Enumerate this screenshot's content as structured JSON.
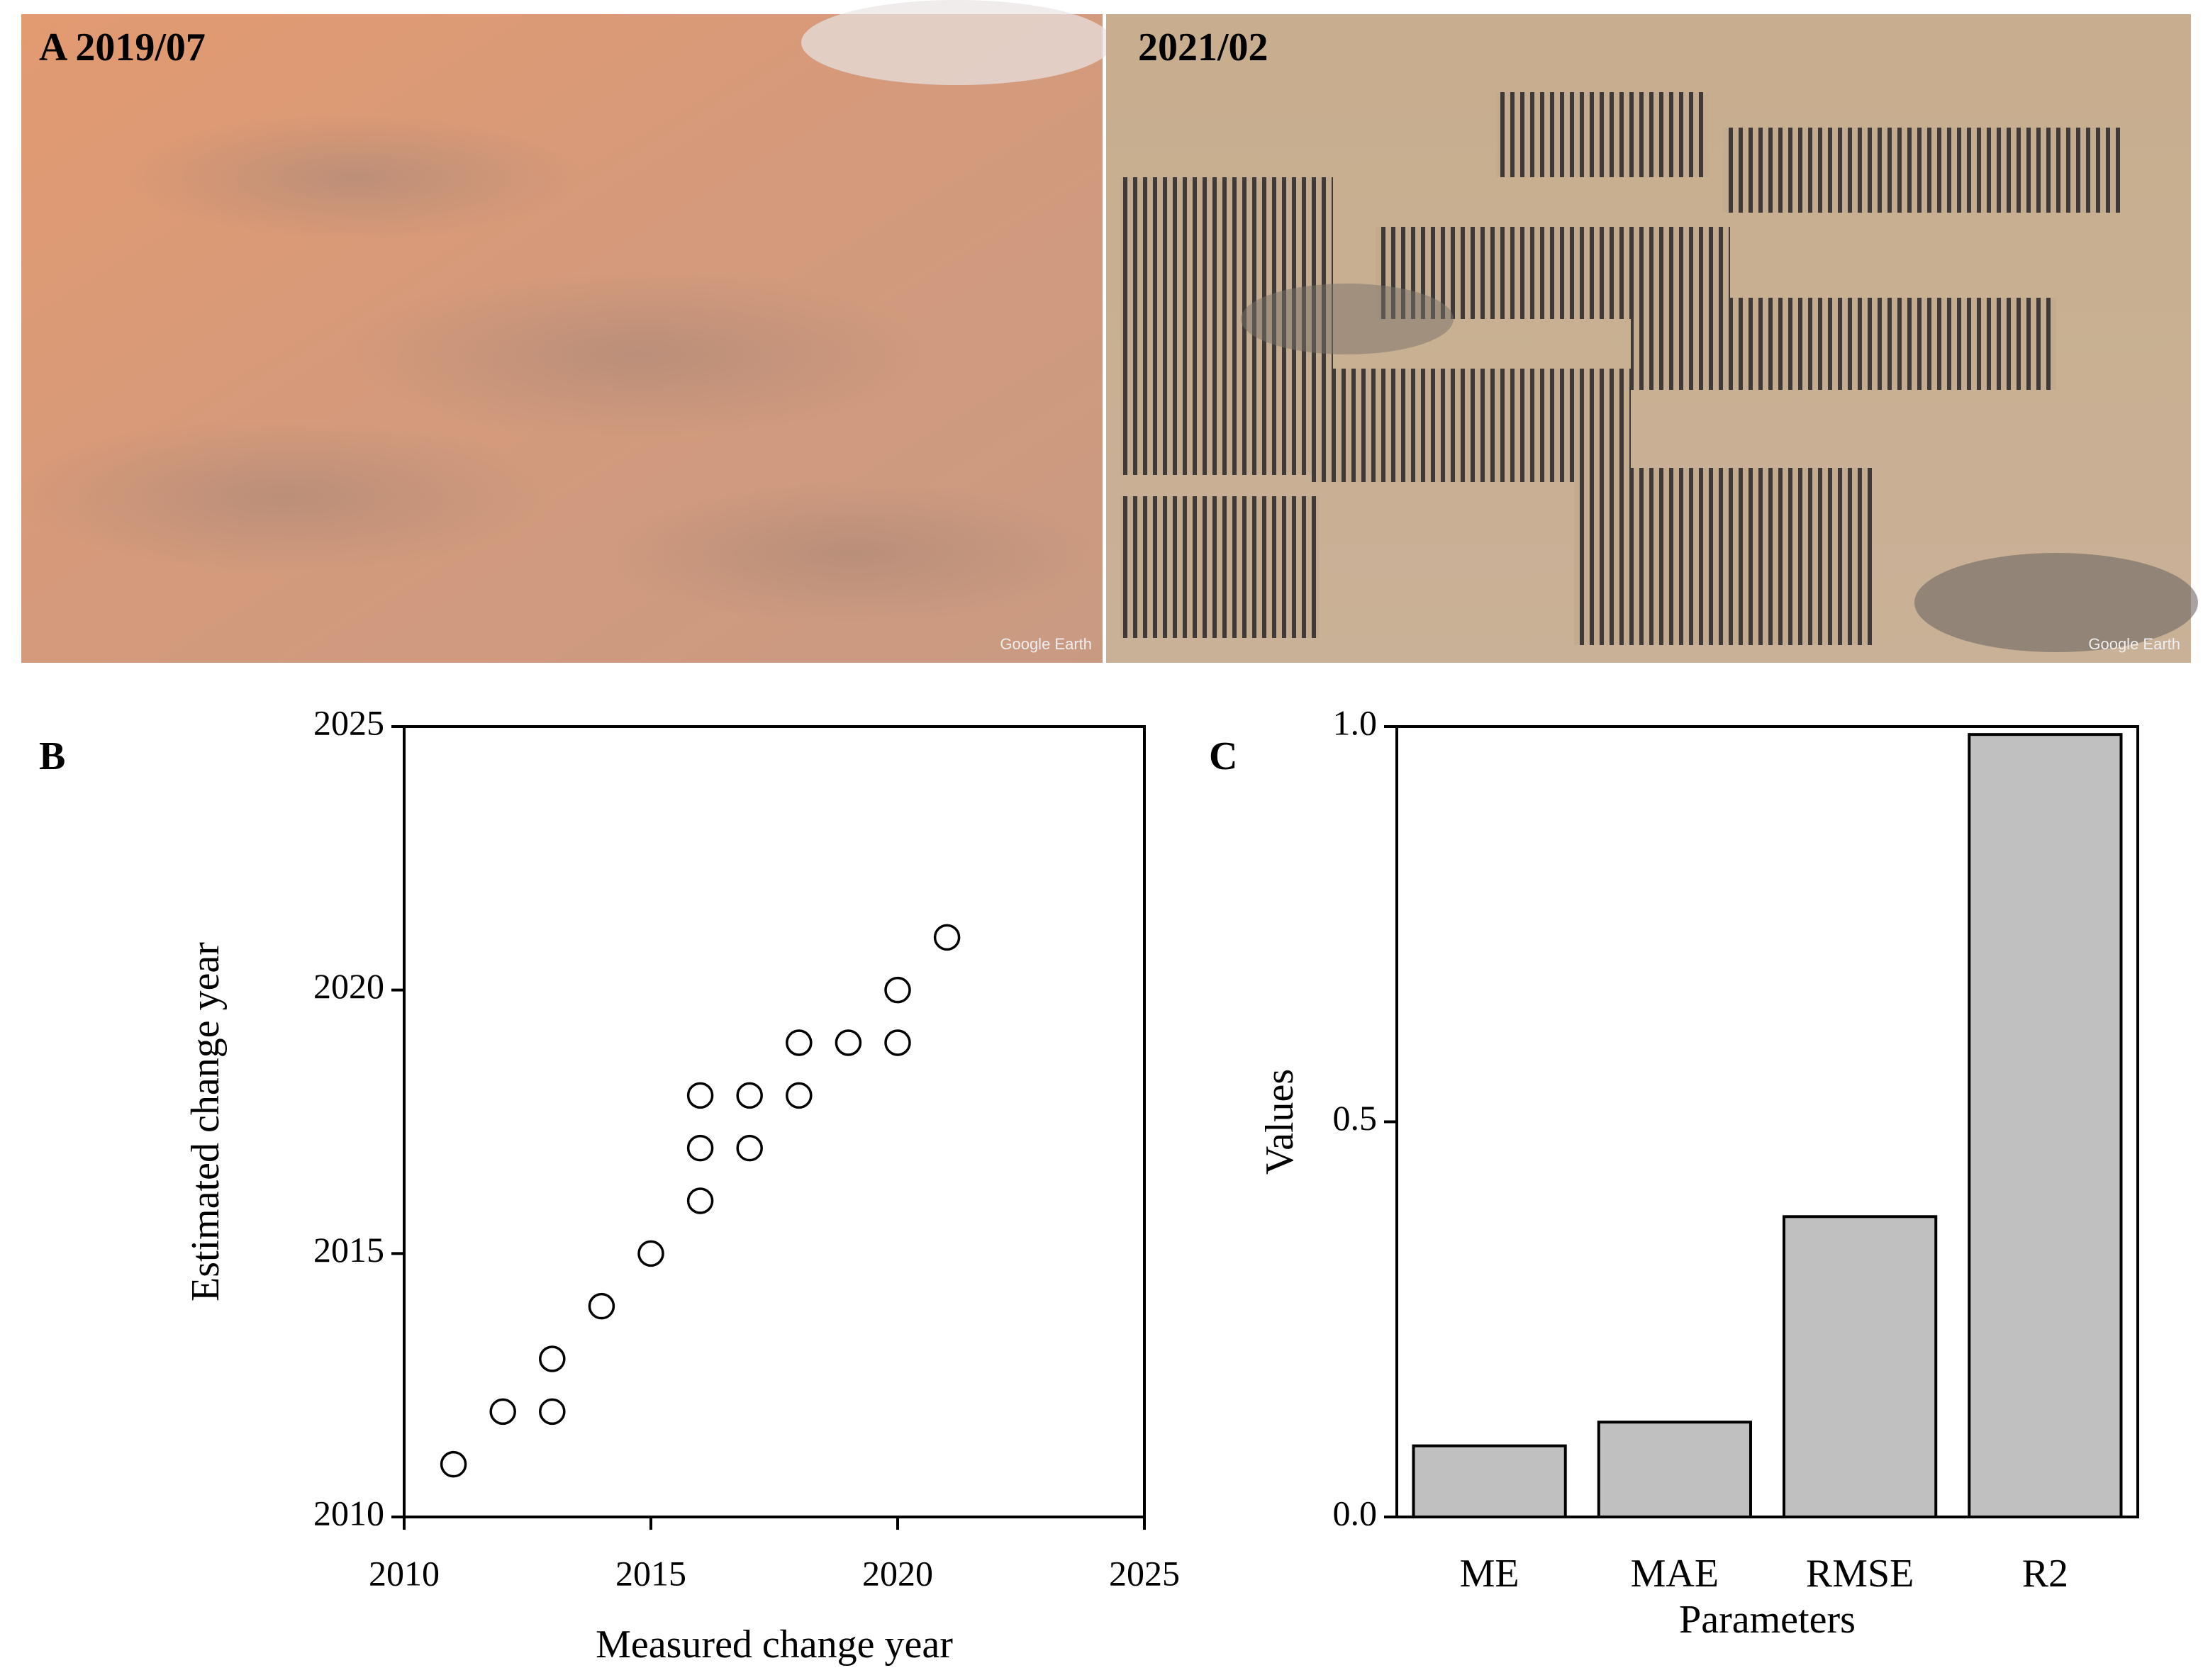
{
  "images": [
    {
      "caption": "A 2019/07",
      "credit": "Google Earth"
    },
    {
      "caption": "2021/02",
      "credit": "Google Earth"
    }
  ],
  "chart_data": [
    {
      "type": "scatter",
      "label": "B",
      "x_label": "Measured change year",
      "y_label": "Estimated change year",
      "x": [
        2011,
        2012,
        2013,
        2013,
        2014,
        2015,
        2016,
        2016,
        2016,
        2017,
        2017,
        2018,
        2018,
        2019,
        2020,
        2020,
        2021
      ],
      "values": [
        2011,
        2012,
        2012,
        2013,
        2014,
        2015,
        2016,
        2017,
        2018,
        2017,
        2018,
        2018,
        2019,
        2019,
        2019,
        2020,
        2021
      ],
      "color": "#000000",
      "xlim": [
        2010,
        2025
      ],
      "xticks": [
        2010,
        2015,
        2020,
        2025
      ],
      "ylim": [
        2010,
        2025
      ],
      "yticks": [
        2010,
        2015,
        2020,
        2025
      ]
    },
    {
      "type": "bar",
      "label": "C",
      "x_label": "Parameters",
      "y_label": "Values",
      "categories": [
        "ME",
        "MAE",
        "RMSE",
        "R2"
      ],
      "values": [
        0.09,
        0.12,
        0.38,
        0.99
      ],
      "color": "#c0c0c0",
      "ylim": [
        0,
        1
      ],
      "yticks": [
        {
          "value": 0,
          "label": "0.0"
        },
        {
          "value": 0.5,
          "label": "0.5"
        },
        {
          "value": 1,
          "label": "1.0"
        }
      ]
    }
  ]
}
